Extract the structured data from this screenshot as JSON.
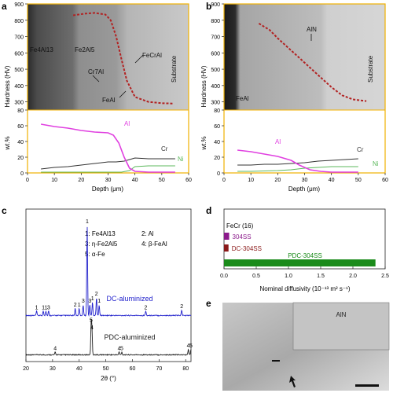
{
  "panels": {
    "a": {
      "label": "a",
      "micrograph_labels": [
        "Fe4Al13",
        "Fe2Al5",
        "Cr7Al",
        "FeCrAl",
        "FeAl",
        "Substrate"
      ],
      "hardness_axis": {
        "label": "Hardness (HV)",
        "ticks": [
          300,
          400,
          500,
          600,
          700,
          800,
          900
        ],
        "range": [
          250,
          900
        ]
      },
      "wt_axis": {
        "label": "wt.%",
        "ticks": [
          0,
          20,
          40,
          60,
          80
        ],
        "range": [
          0,
          80
        ]
      },
      "depth_axis": {
        "label": "Depth (μm)",
        "ticks": [
          0,
          10,
          20,
          30,
          40,
          50,
          60
        ],
        "range": [
          0,
          60
        ]
      },
      "hardness": {
        "x": [
          17,
          21,
          25,
          29,
          31,
          33,
          35,
          37,
          40,
          45,
          50,
          54
        ],
        "y": [
          830,
          840,
          845,
          835,
          800,
          700,
          560,
          430,
          330,
          300,
          292,
          290
        ]
      },
      "series_labels": {
        "Al": "Al",
        "Cr": "Cr",
        "Ni": "Ni"
      },
      "Al": {
        "x": [
          5,
          10,
          15,
          20,
          25,
          30,
          32,
          34,
          36,
          38,
          40,
          45,
          50,
          55
        ],
        "y": [
          62,
          59,
          57,
          54,
          52,
          51,
          48,
          38,
          20,
          6,
          2,
          1,
          1,
          1
        ]
      },
      "Cr": {
        "x": [
          5,
          10,
          15,
          20,
          25,
          30,
          33,
          36,
          38,
          40,
          45,
          50,
          55
        ],
        "y": [
          5,
          7,
          8,
          10,
          12,
          14,
          14,
          15,
          17,
          19,
          18,
          18,
          18
        ]
      },
      "Ni": {
        "x": [
          5,
          10,
          20,
          30,
          35,
          38,
          40,
          45,
          50,
          55
        ],
        "y": [
          1,
          1,
          1,
          1,
          1,
          3,
          8,
          9,
          9,
          9
        ]
      }
    },
    "b": {
      "label": "b",
      "micrograph_labels": [
        "AlN",
        "FeAl",
        "Substrate"
      ],
      "hardness_axis": {
        "label": "Hardness (HV)",
        "ticks": [
          300,
          400,
          500,
          600,
          700,
          800,
          900
        ],
        "range": [
          250,
          900
        ]
      },
      "wt_axis": {
        "label": "wt.%",
        "ticks": [
          0,
          20,
          40,
          60,
          80
        ],
        "range": [
          0,
          80
        ]
      },
      "depth_axis": {
        "label": "Depth (μm)",
        "ticks": [
          0,
          10,
          20,
          30,
          40,
          50,
          60
        ],
        "range": [
          0,
          60
        ]
      },
      "hardness": {
        "x": [
          13,
          17,
          20,
          24,
          28,
          32,
          36,
          40,
          44,
          48,
          53
        ],
        "y": [
          780,
          740,
          690,
          630,
          570,
          510,
          450,
          390,
          340,
          315,
          305
        ]
      },
      "series_labels": {
        "Al": "Al",
        "Cr": "Cr",
        "Ni": "Ni"
      },
      "Al": {
        "x": [
          5,
          10,
          15,
          20,
          25,
          28,
          32,
          36,
          40,
          45,
          50
        ],
        "y": [
          29,
          27,
          24,
          21,
          16,
          10,
          4,
          2,
          1,
          1,
          1
        ]
      },
      "Cr": {
        "x": [
          5,
          10,
          15,
          20,
          25,
          30,
          35,
          40,
          45,
          50
        ],
        "y": [
          10,
          10,
          11,
          11,
          12,
          13,
          15,
          16,
          17,
          18
        ]
      },
      "Ni": {
        "x": [
          5,
          10,
          20,
          25,
          30,
          35,
          40,
          45,
          50
        ],
        "y": [
          2,
          2,
          3,
          4,
          6,
          7,
          8,
          8,
          8
        ]
      }
    },
    "c": {
      "label": "c",
      "legend": [
        "1: Fe4Al13",
        "2: Al",
        "3: η-Fe2Al5",
        "4: β-FeAl",
        "5: α-Fe"
      ],
      "xlabel": "2θ (°)",
      "xticks": [
        20,
        30,
        40,
        50,
        60,
        70,
        80
      ],
      "xrange": [
        20,
        82
      ],
      "dc_label": "DC-aluminized",
      "pdc_label": "PDC-aluminized",
      "dc_peaks": [
        {
          "x": 24.0,
          "h": 0.05,
          "label": "1"
        },
        {
          "x": 26.5,
          "h": 0.05,
          "label": "1"
        },
        {
          "x": 27.5,
          "h": 0.05,
          "label": "1"
        },
        {
          "x": 28.5,
          "h": 0.05,
          "label": "3"
        },
        {
          "x": 38.5,
          "h": 0.08,
          "label": "2"
        },
        {
          "x": 40.0,
          "h": 0.08,
          "label": "1"
        },
        {
          "x": 41.5,
          "h": 0.12,
          "label": "3"
        },
        {
          "x": 43.0,
          "h": 1.0,
          "label": "1"
        },
        {
          "x": 44.0,
          "h": 0.12,
          "label": "3"
        },
        {
          "x": 45.0,
          "h": 0.15,
          "label": "1"
        },
        {
          "x": 46.5,
          "h": 0.2,
          "label": "2"
        },
        {
          "x": 47.5,
          "h": 0.12,
          "label": "1"
        },
        {
          "x": 65.0,
          "h": 0.05,
          "label": "2"
        },
        {
          "x": 78.5,
          "h": 0.06,
          "label": "2"
        }
      ],
      "pdc_peaks": [
        {
          "x": 31.0,
          "h": 0.05,
          "label": "4"
        },
        {
          "x": 44.5,
          "h": 0.55,
          "label": "5"
        },
        {
          "x": 44.8,
          "h": 0.42,
          "label": "4"
        },
        {
          "x": 55.0,
          "h": 0.05,
          "label": "4"
        },
        {
          "x": 56.0,
          "h": 0.05,
          "label": "5"
        },
        {
          "x": 81.0,
          "h": 0.1,
          "label": "4"
        },
        {
          "x": 82.0,
          "h": 0.1,
          "label": "5"
        }
      ]
    },
    "d": {
      "label": "d",
      "note": "FeCr (16)",
      "xlabel": "Nominal diffusivity (10⁻¹³ m² s⁻¹)",
      "xticks": [
        0.0,
        0.5,
        1.0,
        1.5,
        2.0,
        2.5
      ],
      "xrange": [
        0,
        2.5
      ],
      "bars": [
        {
          "name": "304SS",
          "value": 0.08,
          "color": "#8b1a8b"
        },
        {
          "name": "DC-304SS",
          "value": 0.07,
          "color": "#8b1a1a"
        },
        {
          "name": "PDC-304SS",
          "value": 2.35,
          "color": "#1a8b1a"
        }
      ]
    },
    "e": {
      "label": "e",
      "inset_label": "AlN"
    }
  },
  "colors": {
    "Al": "#e040e0",
    "Cr": "#333333",
    "Ni": "#5cb85c",
    "hardness": "#b22222",
    "axis": "#222222",
    "frame": "#f0b000",
    "dc": "#2222cc",
    "pdc": "#222222"
  }
}
